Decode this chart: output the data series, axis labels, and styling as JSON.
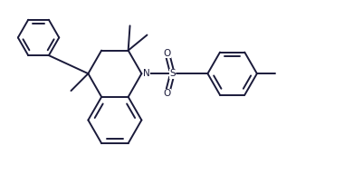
{
  "background_color": "#ffffff",
  "line_color": "#1a1a3a",
  "line_width": 1.4,
  "figsize": [
    3.9,
    1.93
  ],
  "dpi": 100,
  "xlim": [
    0,
    10
  ],
  "ylim": [
    0,
    5
  ]
}
